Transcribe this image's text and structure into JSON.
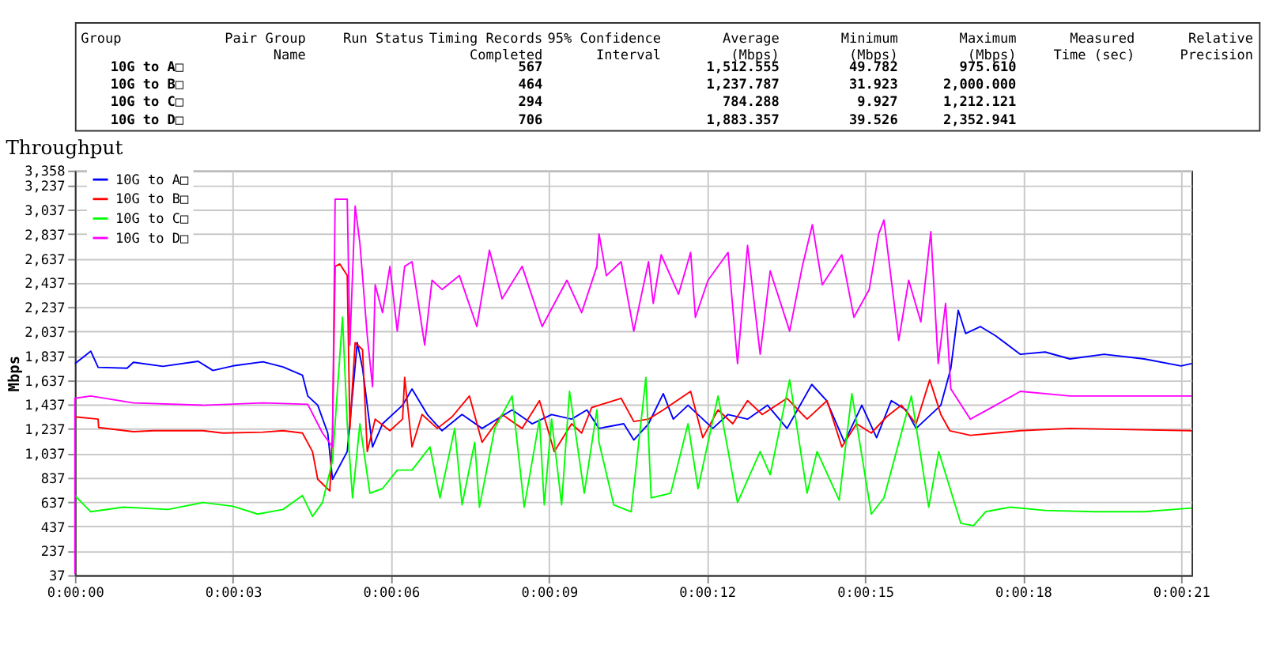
{
  "chart_data": [
    {
      "type": "other",
      "categories": [
        "Group",
        "Pair Group\nName",
        "Run Status",
        "Timing Records\nCompleted",
        "95% Confidence\nInterval",
        "Average\n(Mbps)",
        "Minimum\n(Mbps)",
        "Maximum\n(Mbps)",
        "Measured\nTime (sec)",
        "Relative\nPrecision"
      ],
      "y_categories": [
        "10G to A□",
        "10G to B□",
        "10G to C□",
        "10G to D□"
      ],
      "cell_labels": [
        [
          null,
          null,
          "567",
          null,
          "1,512.555",
          "49.782",
          "975.610",
          null,
          null
        ],
        [
          null,
          null,
          "464",
          null,
          "1,237.787",
          "31.923",
          "2,000.000",
          null,
          null
        ],
        [
          null,
          null,
          "294",
          null,
          "784.288",
          "9.927",
          "1,212.121",
          null,
          null
        ],
        [
          null,
          null,
          "706",
          null,
          "1,883.357",
          "39.526",
          "2,352.941",
          null,
          null
        ]
      ]
    },
    {
      "type": "line",
      "title": "Throughput",
      "ylabel": "Mbps",
      "xlim": [
        0,
        21.2
      ],
      "ylim": [
        37,
        3358
      ],
      "xticks": [
        {
          "value": 0,
          "label": "0:00:00"
        },
        {
          "value": 3,
          "label": "0:00:03"
        },
        {
          "value": 6,
          "label": "0:00:06"
        },
        {
          "value": 9,
          "label": "0:00:09"
        },
        {
          "value": 12,
          "label": "0:00:12"
        },
        {
          "value": 15,
          "label": "0:00:15"
        },
        {
          "value": 18,
          "label": "0:00:18"
        },
        {
          "value": 21,
          "label": "0:00:21"
        }
      ],
      "yticks": [
        37,
        237,
        437,
        637,
        837,
        {
          "value": 1037,
          "label": "1,037"
        },
        {
          "value": 1237,
          "label": "1,237"
        },
        {
          "value": 1437,
          "label": "1,437"
        },
        {
          "value": 1637,
          "label": "1,637"
        },
        {
          "value": 1837,
          "label": "1,837"
        },
        {
          "value": 2037,
          "label": "2,037"
        },
        {
          "value": 2237,
          "label": "2,237"
        },
        {
          "value": 2437,
          "label": "2,437"
        },
        {
          "value": 2637,
          "label": "2,637"
        },
        {
          "value": 2837,
          "label": "2,837"
        },
        {
          "value": 3037,
          "label": "3,037"
        },
        {
          "value": 3237,
          "label": "3,237"
        },
        {
          "value": 3358,
          "label": "3,358"
        }
      ],
      "grid": true,
      "legend": "top left",
      "line_style": "solid",
      "marker": "none",
      "series": [
        {
          "name": "10G to A□",
          "color": "#0000ff",
          "x": [
            0,
            0.3,
            0.44,
            0.99,
            1.11,
            1.67,
            2.34,
            2.62,
            3.0,
            3.57,
            3.95,
            4.32,
            4.42,
            4.61,
            4.8,
            4.89,
            5.17,
            5.36,
            5.46,
            5.65,
            5.84,
            6.22,
            6.4,
            6.69,
            6.97,
            7.35,
            7.73,
            8.3,
            8.68,
            9.05,
            9.43,
            9.72,
            9.95,
            10.42,
            10.61,
            10.89,
            11.17,
            11.36,
            11.64,
            12.11,
            12.4,
            12.77,
            13.15,
            13.52,
            13.99,
            14.27,
            14.61,
            14.94,
            15.22,
            15.5,
            15.78,
            15.97,
            16.44,
            16.63,
            16.77,
            16.91,
            17.19,
            17.48,
            17.95,
            18.42,
            18.89,
            19.54,
            20.3,
            21.0,
            21.2
          ],
          "values": [
            1774,
            1876,
            1743,
            1736,
            1785,
            1751,
            1793,
            1717,
            1755,
            1789,
            1747,
            1679,
            1508,
            1432,
            1204,
            824,
            1052,
            1945,
            1736,
            1090,
            1280,
            1432,
            1565,
            1356,
            1223,
            1356,
            1242,
            1394,
            1280,
            1356,
            1318,
            1394,
            1242,
            1280,
            1147,
            1280,
            1527,
            1318,
            1432,
            1242,
            1356,
            1318,
            1432,
            1242,
            1603,
            1470,
            1128,
            1432,
            1166,
            1470,
            1394,
            1242,
            1432,
            1736,
            2211,
            2021,
            2078,
            2002,
            1850,
            1869,
            1812,
            1850,
            1812,
            1755,
            1774
          ]
        },
        {
          "name": "10G to B□",
          "color": "#ff0000",
          "x": [
            0,
            0.44,
            0.45,
            1.11,
            1.49,
            2.43,
            2.81,
            3.57,
            3.95,
            4.32,
            4.51,
            4.61,
            4.84,
            4.89,
            4.94,
            5.03,
            5.17,
            5.22,
            5.32,
            5.46,
            5.55,
            5.7,
            5.98,
            6.22,
            6.26,
            6.4,
            6.59,
            6.88,
            7.16,
            7.49,
            7.73,
            8.11,
            8.49,
            8.82,
            9.1,
            9.43,
            9.62,
            9.81,
            9.95,
            10.37,
            10.61,
            10.89,
            11.17,
            11.69,
            11.92,
            12.21,
            12.49,
            12.77,
            13.05,
            13.52,
            13.9,
            14.28,
            14.56,
            14.84,
            15.12,
            15.41,
            15.69,
            15.97,
            16.23,
            16.44,
            16.61,
            17.0,
            17.48,
            17.95,
            18.89,
            19.83,
            21.2
          ],
          "values": [
            1337,
            1318,
            1249,
            1215,
            1223,
            1223,
            1204,
            1211,
            1223,
            1204,
            1052,
            824,
            729,
            1204,
            2572,
            2591,
            2496,
            1242,
            1945,
            1888,
            1052,
            1318,
            1223,
            1318,
            1660,
            1090,
            1356,
            1242,
            1337,
            1508,
            1128,
            1356,
            1242,
            1470,
            1052,
            1280,
            1204,
            1413,
            1432,
            1489,
            1299,
            1318,
            1394,
            1546,
            1166,
            1394,
            1280,
            1470,
            1356,
            1489,
            1318,
            1470,
            1090,
            1280,
            1204,
            1337,
            1432,
            1280,
            1641,
            1356,
            1223,
            1185,
            1204,
            1223,
            1242,
            1234,
            1223
          ]
        },
        {
          "name": "10G to C□",
          "color": "#00ff00",
          "x": [
            0,
            0.3,
            0.92,
            1.77,
            2.43,
            3.0,
            3.47,
            3.95,
            4.32,
            4.51,
            4.7,
            4.89,
            5.08,
            5.17,
            5.27,
            5.41,
            5.6,
            5.84,
            6.12,
            6.4,
            6.74,
            6.93,
            7.21,
            7.35,
            7.59,
            7.68,
            7.97,
            8.3,
            8.53,
            8.82,
            8.91,
            9.05,
            9.24,
            9.39,
            9.67,
            9.91,
            9.95,
            10.23,
            10.56,
            10.84,
            10.94,
            11.31,
            11.64,
            11.83,
            12.21,
            12.58,
            13.01,
            13.2,
            13.57,
            13.9,
            14.09,
            14.51,
            14.75,
            15.12,
            15.36,
            15.88,
            16.21,
            16.4,
            16.82,
            17.06,
            17.29,
            17.76,
            18.42,
            19.36,
            20.3,
            21.2
          ],
          "values": [
            691,
            558,
            596,
            577,
            634,
            603,
            539,
            577,
            691,
            520,
            634,
            976,
            2154,
            1280,
            672,
            1280,
            710,
            748,
            900,
            900,
            1090,
            672,
            1242,
            615,
            1128,
            596,
            1242,
            1508,
            596,
            1318,
            615,
            1318,
            615,
            1546,
            710,
            1394,
            1128,
            615,
            558,
            1660,
            672,
            710,
            1280,
            748,
            1508,
            634,
            1052,
            862,
            1641,
            710,
            1052,
            653,
            1527,
            539,
            672,
            1508,
            596,
            1052,
            463,
            444,
            558,
            596,
            569,
            558,
            558,
            588
          ]
        },
        {
          "name": "10G to D□",
          "color": "#ff00ff",
          "x": [
            0,
            0,
            0.3,
            1.11,
            2.43,
            3.57,
            4.42,
            4.7,
            4.89,
            4.94,
            5.17,
            5.22,
            5.32,
            5.41,
            5.55,
            5.65,
            5.7,
            5.84,
            5.98,
            6.12,
            6.26,
            6.4,
            6.64,
            6.78,
            6.97,
            7.3,
            7.63,
            7.87,
            8.11,
            8.49,
            8.87,
            9.34,
            9.62,
            9.91,
            9.95,
            10.09,
            10.37,
            10.61,
            10.89,
            10.98,
            11.13,
            11.46,
            11.69,
            11.78,
            12.02,
            12.4,
            12.58,
            12.77,
            13.01,
            13.2,
            13.57,
            13.81,
            14.0,
            14.19,
            14.56,
            14.79,
            15.08,
            15.26,
            15.36,
            15.5,
            15.64,
            15.83,
            16.06,
            16.25,
            16.39,
            16.53,
            16.63,
            17.0,
            17.48,
            17.95,
            18.89,
            19.83,
            21.2
          ],
          "values": [
            45,
            1489,
            1508,
            1451,
            1432,
            1451,
            1440,
            1204,
            1090,
            3123,
            3123,
            1926,
            3066,
            2762,
            2002,
            1584,
            2420,
            2192,
            2572,
            2040,
            2572,
            2610,
            1926,
            2458,
            2382,
            2496,
            2078,
            2705,
            2306,
            2572,
            2078,
            2458,
            2192,
            2572,
            2838,
            2496,
            2610,
            2040,
            2610,
            2268,
            2667,
            2344,
            2686,
            2154,
            2458,
            2686,
            1774,
            2743,
            1850,
            2534,
            2040,
            2572,
            2914,
            2420,
            2667,
            2154,
            2382,
            2838,
            2952,
            2458,
            1964,
            2458,
            2116,
            2857,
            1774,
            2268,
            1565,
            1318,
            1432,
            1546,
            1508,
            1508,
            1508
          ]
        }
      ]
    }
  ]
}
